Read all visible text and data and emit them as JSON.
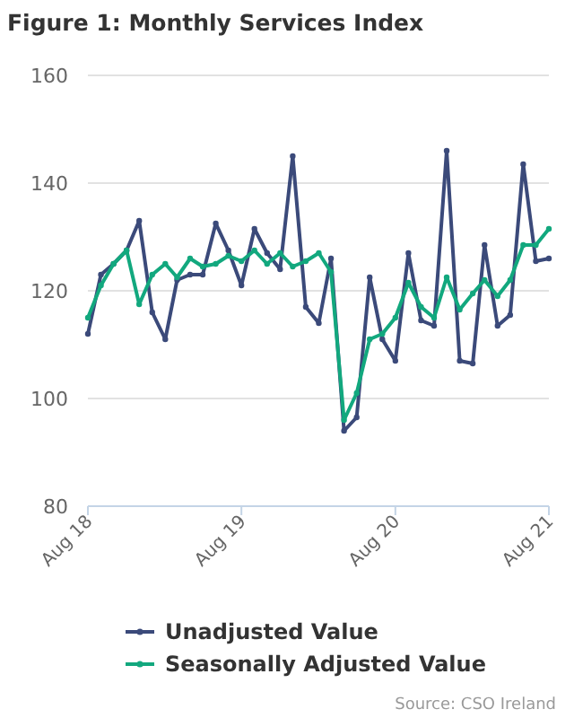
{
  "chart_data": {
    "type": "line",
    "title": "Figure 1: Monthly Services Index",
    "x": [
      "2018-08",
      "2018-09",
      "2018-10",
      "2018-11",
      "2018-12",
      "2019-01",
      "2019-02",
      "2019-03",
      "2019-04",
      "2019-05",
      "2019-06",
      "2019-07",
      "2019-08",
      "2019-09",
      "2019-10",
      "2019-11",
      "2019-12",
      "2020-01",
      "2020-02",
      "2020-03",
      "2020-04",
      "2020-05",
      "2020-06",
      "2020-07",
      "2020-08",
      "2020-09",
      "2020-10",
      "2020-11",
      "2020-12",
      "2021-01",
      "2021-02",
      "2021-03",
      "2021-04",
      "2021-05",
      "2021-06",
      "2021-07",
      "2021-08"
    ],
    "series": [
      {
        "name": "Unadjusted Value",
        "color": "#3b4a7a",
        "values": [
          112,
          123,
          125,
          127.5,
          133,
          116,
          111,
          122,
          123,
          123,
          132.5,
          127.5,
          121,
          131.5,
          127,
          124,
          145,
          117,
          114,
          126,
          94,
          96.5,
          122.5,
          111,
          107,
          127,
          114.5,
          113.5,
          146,
          107,
          106.5,
          128.5,
          113.5,
          115.5,
          143.5,
          125.5,
          126
        ]
      },
      {
        "name": "Seasonally Adjusted Value",
        "color": "#12a87e",
        "values": [
          115,
          121,
          125,
          127.5,
          117.5,
          123,
          125,
          122.5,
          126,
          124.5,
          125,
          126.5,
          125.5,
          127.5,
          125,
          127,
          124.5,
          125.5,
          127,
          123.5,
          96,
          101,
          111,
          112,
          115,
          121.5,
          117,
          115,
          122.5,
          116.5,
          119.5,
          122,
          119,
          122,
          128.5,
          128.5,
          131.5
        ]
      }
    ],
    "xlim": [
      "2018-08",
      "2021-08"
    ],
    "xticks": [
      {
        "value": "2018-08",
        "label": "Aug 18"
      },
      {
        "value": "2019-08",
        "label": "Aug 19"
      },
      {
        "value": "2020-08",
        "label": "Aug 20"
      },
      {
        "value": "2021-08",
        "label": "Aug 21"
      }
    ],
    "ylim": [
      80,
      160
    ],
    "yticks": [
      80,
      100,
      120,
      140,
      160
    ],
    "grid": "y",
    "legend": "bottom",
    "marker": "circle",
    "line_style": "solid",
    "annotations": [
      "Source: CSO Ireland"
    ]
  }
}
